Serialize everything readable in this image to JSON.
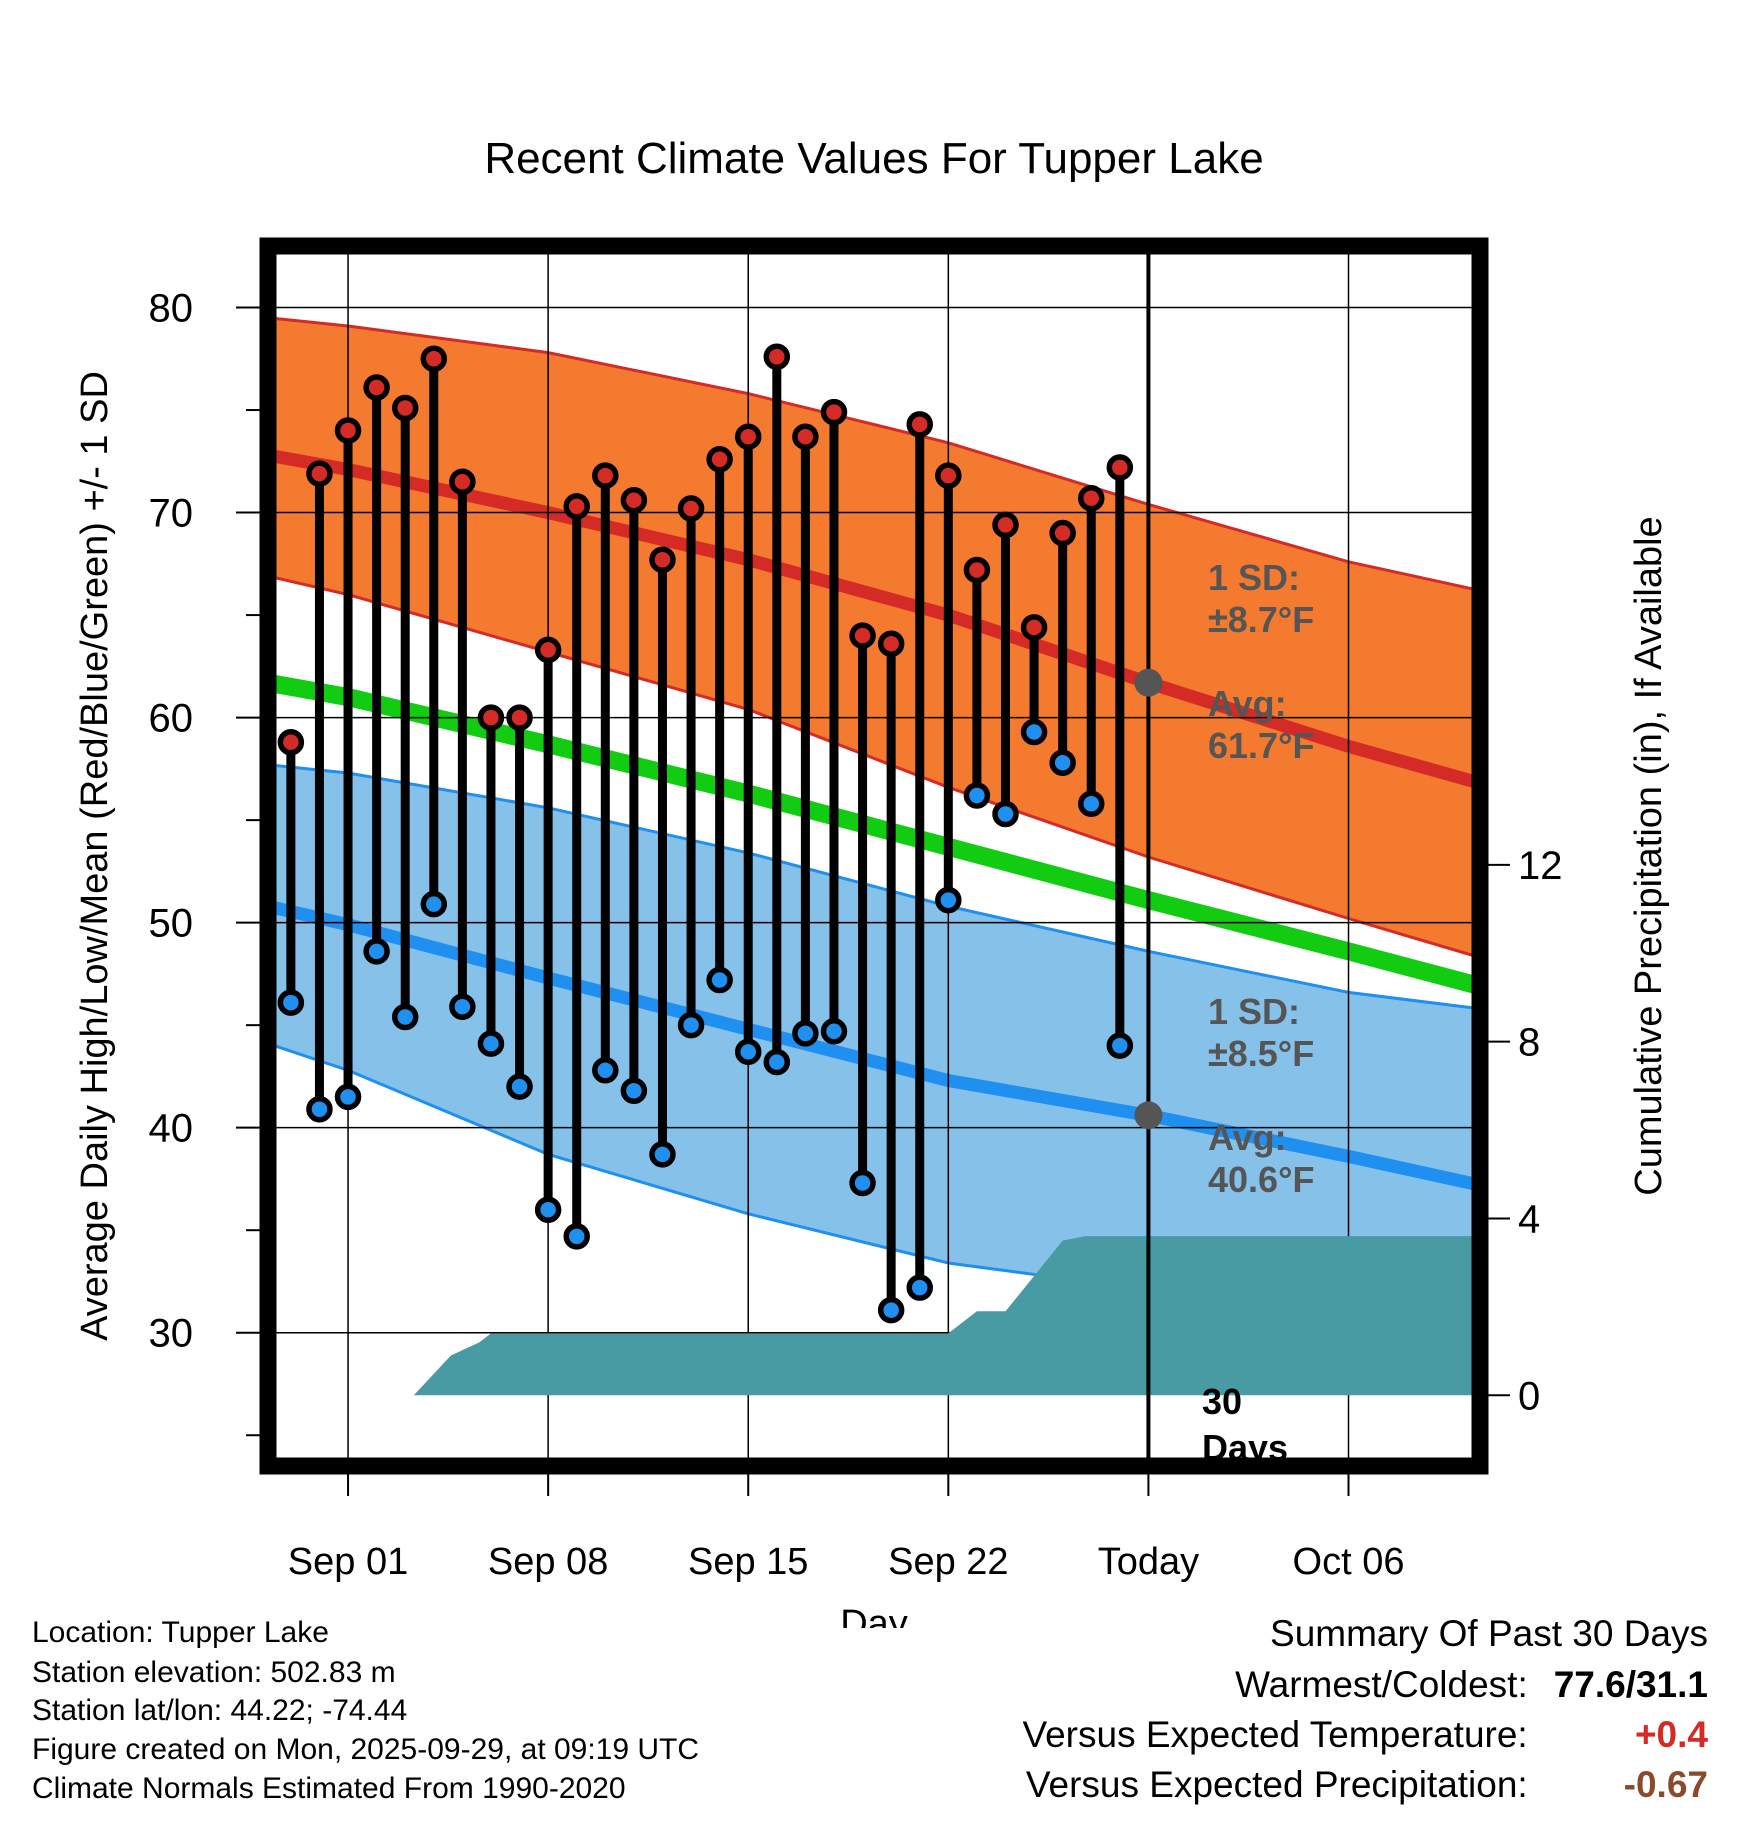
{
  "colors": {
    "high_band": "#f47a30",
    "high_line": "#d42b27",
    "low_band": "#85c1e8",
    "low_line": "#1f8ff0",
    "mean_line": "#12cc12",
    "precip": "#489aa3",
    "marker_high": "#d42b27",
    "marker_low": "#1f8ff0",
    "today_marker": "#555555",
    "positive": "#d42b27",
    "negative": "#8b4a2b"
  },
  "chart_data": {
    "type": "line",
    "title": "Recent Climate Values For Tupper Lake",
    "xlabel": "Day",
    "ylabel": "Average Daily High/Low/Mean (Red/Blue/Green) +/- 1 SD",
    "y2label": "Cumulative Precipitation (in), If Available",
    "xlim": [
      -2.8,
      39.6
    ],
    "ylim": [
      23.5,
      83
    ],
    "y2lim": [
      -1.6,
      26.0
    ],
    "x_ticks": [
      0,
      7,
      14,
      21,
      28,
      35
    ],
    "x_tick_labels": [
      "Sep 01",
      "Sep 08",
      "Sep 15",
      "Sep 22",
      "Today",
      "Oct 06"
    ],
    "y_ticks": [
      30,
      40,
      50,
      60,
      70,
      80
    ],
    "y_minor_ticks": [
      25,
      35,
      45,
      55,
      65,
      75
    ],
    "y2_ticks": [
      0,
      4,
      8,
      12
    ],
    "normals": {
      "x": [
        -2.8,
        0,
        7,
        14,
        21,
        28,
        35,
        39.6
      ],
      "high_mean": [
        72.8,
        72.1,
        70.0,
        67.7,
        65.0,
        61.7,
        58.6,
        56.8
      ],
      "high_sd_top": [
        79.5,
        79.1,
        77.8,
        75.8,
        73.4,
        70.4,
        67.6,
        66.2
      ],
      "high_sd_bottom": [
        66.9,
        66.0,
        63.2,
        60.4,
        56.6,
        53.2,
        50.2,
        48.3
      ],
      "low_mean": [
        50.8,
        49.9,
        47.3,
        44.8,
        42.3,
        40.6,
        38.6,
        37.2
      ],
      "low_sd_top": [
        57.7,
        57.3,
        55.6,
        53.4,
        50.8,
        48.6,
        46.6,
        45.8
      ],
      "low_sd_bottom": [
        44.1,
        42.8,
        38.7,
        35.8,
        33.4,
        32.1,
        31.1,
        30.8
      ],
      "mean": [
        61.7,
        61.0,
        58.7,
        56.3,
        53.7,
        51.1,
        48.6,
        46.9
      ]
    },
    "observed": {
      "x": [
        -2,
        -1,
        0,
        1,
        2,
        3,
        4,
        5,
        6,
        7,
        8,
        9,
        10,
        11,
        12,
        13,
        14,
        15,
        16,
        17,
        18,
        19,
        20,
        21,
        22,
        23,
        24,
        25,
        26,
        27
      ],
      "high": [
        58.8,
        71.9,
        74.0,
        76.1,
        75.1,
        77.5,
        71.5,
        60.0,
        60.0,
        63.3,
        70.3,
        71.8,
        70.6,
        67.7,
        70.2,
        72.6,
        73.7,
        77.6,
        73.7,
        74.9,
        64.0,
        63.6,
        74.3,
        71.8,
        67.2,
        69.4,
        64.4,
        69.0,
        70.7,
        72.2
      ],
      "low": [
        46.1,
        40.9,
        41.5,
        48.6,
        45.4,
        50.9,
        45.9,
        44.1,
        42.0,
        36.0,
        34.7,
        42.8,
        41.8,
        38.7,
        45.0,
        47.2,
        43.7,
        43.2,
        44.6,
        44.7,
        37.3,
        31.1,
        32.2,
        51.1,
        56.2,
        55.3,
        59.3,
        57.8,
        55.8,
        44.0
      ]
    },
    "precip": {
      "x": [
        -2.8,
        0,
        1.5,
        2.3,
        3.6,
        4.6,
        5.0,
        7.0,
        14.0,
        21.0,
        22.0,
        23.0,
        25.0,
        25.8,
        39.6
      ],
      "values": [
        0,
        0,
        0,
        0,
        0.9,
        1.2,
        1.4,
        1.4,
        1.4,
        1.4,
        1.9,
        1.9,
        3.5,
        3.6,
        3.6
      ]
    },
    "today_x": 28,
    "today_high_avg": 61.7,
    "today_low_avg": 40.6,
    "annotations": {
      "high_sd": [
        "1 SD:",
        "±8.7°F"
      ],
      "high_avg": [
        "Avg:",
        "61.7°F"
      ],
      "low_sd": [
        "1 SD:",
        "±8.5°F"
      ],
      "low_avg": [
        "Avg:",
        "40.6°F"
      ],
      "window": [
        "30",
        "Days"
      ]
    }
  },
  "meta": {
    "location": "Location: Tupper Lake",
    "elevation": "Station elevation: 502.83 m",
    "latlon": "Station lat/lon: 44.22; -74.44",
    "created": "Figure created on Mon, 2025-09-29, at 09:19 UTC",
    "normals": "Climate Normals Estimated From 1990-2020"
  },
  "summary": {
    "heading": "Summary Of Past 30 Days",
    "warm_label": "Warmest/Coldest:",
    "warm_value": "77.6/31.1",
    "temp_label": "Versus Expected Temperature:",
    "temp_value": "+0.4",
    "precip_label": "Versus Expected Precipitation:",
    "precip_value": "-0.67"
  }
}
